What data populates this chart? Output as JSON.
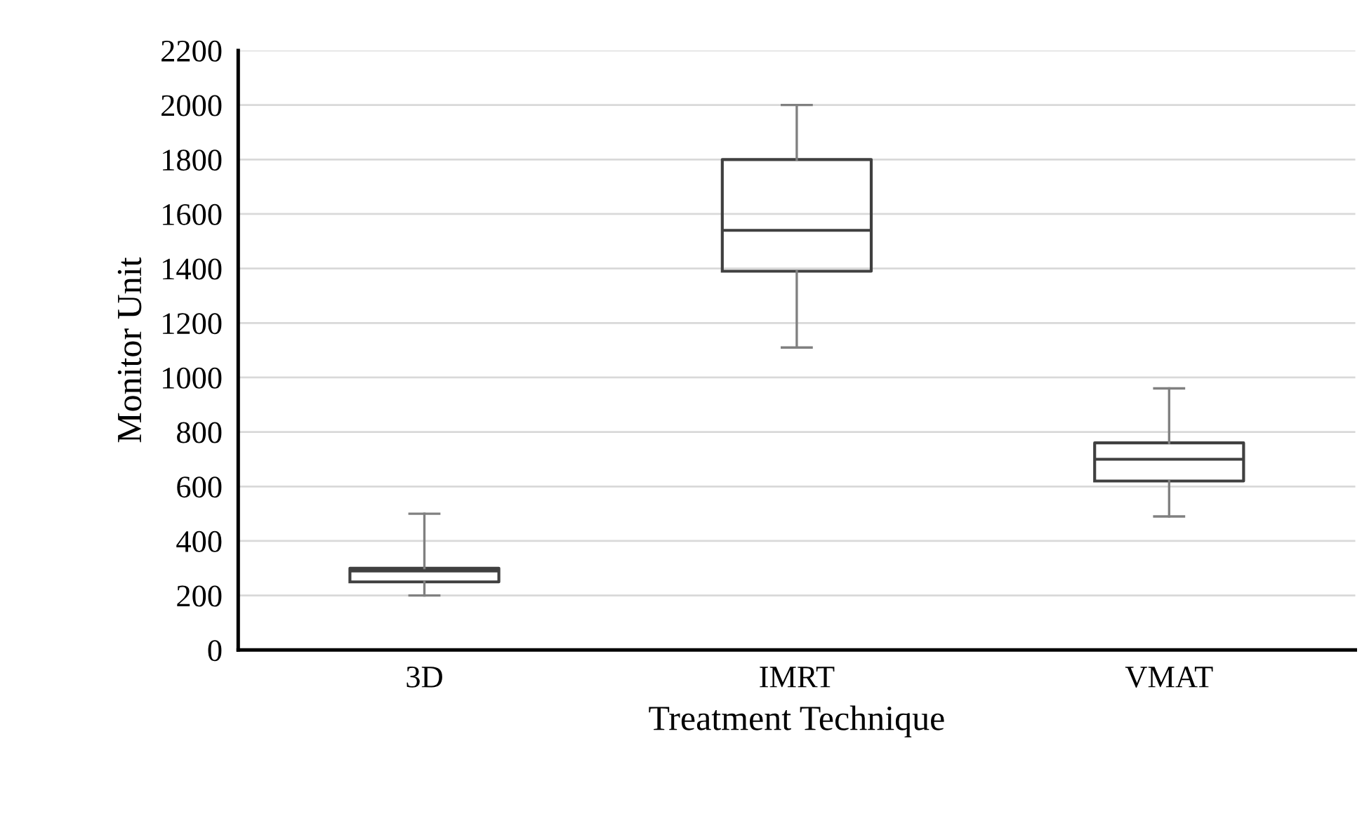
{
  "chart_data": {
    "type": "box",
    "xlabel": "Treatment Technique",
    "ylabel": "Monitor Unit",
    "categories": [
      "3D",
      "IMRT",
      "VMAT"
    ],
    "boxes": [
      {
        "low": 200,
        "q1": 250,
        "median": 290,
        "q3": 300,
        "high": 500
      },
      {
        "low": 1110,
        "q1": 1390,
        "median": 1540,
        "q3": 1800,
        "high": 2000
      },
      {
        "low": 490,
        "q1": 620,
        "median": 700,
        "q3": 760,
        "high": 960
      }
    ],
    "color": "#404040",
    "ylim": [
      0,
      2200
    ],
    "yticks": [
      0,
      200,
      400,
      600,
      800,
      1000,
      1200,
      1400,
      1600,
      1800,
      2000,
      2200
    ],
    "grid": "y"
  }
}
